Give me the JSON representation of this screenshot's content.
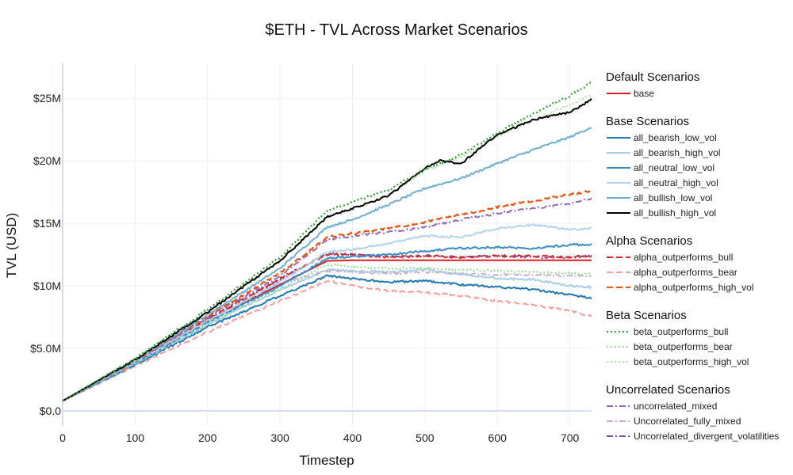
{
  "chart_data": {
    "type": "line",
    "title": "$ETH - TVL Across Market Scenarios",
    "xlabel": "Timestep",
    "ylabel": "TVL (USD)",
    "xlim": [
      0,
      730
    ],
    "ylim": [
      -1200000,
      27800000
    ],
    "x_ticks": [
      0,
      100,
      200,
      300,
      400,
      500,
      600,
      700
    ],
    "x_tick_labels": [
      "0",
      "100",
      "200",
      "300",
      "400",
      "500",
      "600",
      "700"
    ],
    "y_ticks": [
      0,
      5000000,
      10000000,
      15000000,
      20000000,
      25000000
    ],
    "y_tick_labels": [
      "$0.0",
      "$5.0M",
      "$10M",
      "$15M",
      "$20M",
      "$25M"
    ],
    "grid": true,
    "legend_position": "right",
    "legend_groups": [
      {
        "title": "Default Scenarios",
        "series": [
          "base"
        ]
      },
      {
        "title": "Base Scenarios",
        "series": [
          "all_bearish_low_vol",
          "all_bearish_high_vol",
          "all_neutral_low_vol",
          "all_neutral_high_vol",
          "all_bullish_low_vol",
          "all_bullish_high_vol"
        ]
      },
      {
        "title": "Alpha Scenarios",
        "series": [
          "alpha_outperforms_bull",
          "alpha_outperforms_bear",
          "alpha_outperforms_high_vol"
        ]
      },
      {
        "title": "Beta Scenarios",
        "series": [
          "beta_outperforms_bull",
          "beta_outperforms_bear",
          "beta_outperforms_high_vol"
        ]
      },
      {
        "title": "Uncorrelated Scenarios",
        "series": [
          "uncorrelated_mixed",
          "Uncorrelated_fully_mixed",
          "Uncorrelated_divergent_volatilities"
        ]
      }
    ],
    "series": [
      {
        "name": "base",
        "color": "#e31a1c",
        "dash": "solid",
        "width": 2,
        "x": [
          0,
          100,
          200,
          300,
          365,
          400,
          500,
          600,
          730
        ],
        "y": [
          800000,
          3900000,
          7200000,
          10100000,
          12000000,
          12050000,
          12050000,
          12050000,
          12050000
        ]
      },
      {
        "name": "all_bearish_low_vol",
        "color": "#1f78b4",
        "dash": "solid",
        "width": 2,
        "x": [
          0,
          100,
          200,
          300,
          365,
          400,
          450,
          500,
          550,
          600,
          650,
          700,
          730
        ],
        "y": [
          800000,
          3700000,
          6700000,
          9200000,
          10800000,
          10600000,
          10300000,
          10400000,
          10100000,
          9900000,
          9700000,
          9300000,
          9000000
        ]
      },
      {
        "name": "all_bearish_high_vol",
        "color": "#a6cee3",
        "dash": "solid",
        "width": 2,
        "x": [
          0,
          100,
          200,
          300,
          365,
          400,
          450,
          500,
          550,
          600,
          650,
          700,
          730
        ],
        "y": [
          800000,
          3800000,
          6900000,
          9700000,
          11300000,
          11200000,
          11100000,
          11300000,
          10900000,
          10600000,
          10500000,
          10000000,
          9900000
        ]
      },
      {
        "name": "all_neutral_low_vol",
        "color": "#3a8cc6",
        "dash": "solid",
        "width": 2,
        "x": [
          0,
          100,
          200,
          300,
          365,
          400,
          450,
          500,
          550,
          600,
          650,
          700,
          730
        ],
        "y": [
          800000,
          3850000,
          7100000,
          10000000,
          12200000,
          12350000,
          12500000,
          12800000,
          13000000,
          13100000,
          13000000,
          13300000,
          13300000
        ]
      },
      {
        "name": "all_neutral_high_vol",
        "color": "#b2d4ea",
        "dash": "solid",
        "width": 2,
        "x": [
          0,
          100,
          200,
          300,
          365,
          400,
          450,
          500,
          550,
          600,
          650,
          700,
          730
        ],
        "y": [
          800000,
          3900000,
          7200000,
          10300000,
          12700000,
          12900000,
          13400000,
          14000000,
          13900000,
          14600000,
          14900000,
          14500000,
          14600000
        ]
      },
      {
        "name": "all_bullish_low_vol",
        "color": "#6baed6",
        "dash": "solid",
        "width": 2,
        "x": [
          0,
          100,
          200,
          300,
          365,
          400,
          450,
          500,
          550,
          600,
          650,
          700,
          730
        ],
        "y": [
          800000,
          4000000,
          7700000,
          11400000,
          14700000,
          15300000,
          16500000,
          17800000,
          18600000,
          19800000,
          20900000,
          21900000,
          22700000
        ]
      },
      {
        "name": "all_bullish_high_vol",
        "color": "#000000",
        "dash": "solid",
        "width": 2,
        "x": [
          0,
          100,
          200,
          300,
          365,
          400,
          450,
          500,
          520,
          550,
          600,
          650,
          700,
          730
        ],
        "y": [
          800000,
          4100000,
          7900000,
          12000000,
          15500000,
          16200000,
          17200000,
          19400000,
          20000000,
          19800000,
          22100000,
          23300000,
          23900000,
          24900000
        ]
      },
      {
        "name": "alpha_outperforms_bull",
        "color": "#d62728",
        "dash": "8,4",
        "width": 2,
        "x": [
          0,
          100,
          200,
          300,
          365,
          400,
          450,
          500,
          550,
          600,
          650,
          700,
          730
        ],
        "y": [
          800000,
          3900000,
          7300000,
          10600000,
          12500000,
          12500000,
          12300000,
          12400000,
          12300000,
          12400000,
          12400000,
          12300000,
          12400000
        ]
      },
      {
        "name": "alpha_outperforms_bear",
        "color": "#fb9a99",
        "dash": "8,4",
        "width": 2,
        "x": [
          0,
          100,
          200,
          300,
          365,
          400,
          450,
          500,
          550,
          600,
          650,
          700,
          730
        ],
        "y": [
          800000,
          3600000,
          6300000,
          8800000,
          10400000,
          10000000,
          9600000,
          9500000,
          9200000,
          8800000,
          8500000,
          8000000,
          7600000
        ]
      },
      {
        "name": "alpha_outperforms_high_vol",
        "color": "#e6550d",
        "dash": "8,4",
        "width": 2.2,
        "x": [
          0,
          100,
          200,
          300,
          365,
          400,
          450,
          500,
          550,
          600,
          650,
          700,
          730
        ],
        "y": [
          800000,
          4000000,
          7600000,
          11000000,
          13900000,
          14200000,
          14600000,
          15100000,
          15700000,
          16300000,
          16800000,
          17300000,
          17600000
        ]
      },
      {
        "name": "beta_outperforms_bull",
        "color": "#2ca02c",
        "dash": "2,3",
        "width": 2.2,
        "x": [
          0,
          100,
          200,
          300,
          365,
          400,
          450,
          500,
          550,
          600,
          650,
          700,
          730
        ],
        "y": [
          800000,
          4200000,
          8100000,
          12300000,
          16000000,
          16700000,
          17700000,
          19300000,
          20500000,
          22200000,
          23800000,
          25200000,
          26300000
        ]
      },
      {
        "name": "beta_outperforms_bear",
        "color": "#98df8a",
        "dash": "2,3",
        "width": 2.2,
        "x": [
          0,
          100,
          200,
          300,
          365,
          400,
          450,
          500,
          550,
          600,
          650,
          700,
          730
        ],
        "y": [
          800000,
          3800000,
          7000000,
          9800000,
          11700000,
          11500000,
          11400000,
          11400000,
          11300000,
          11200000,
          11100000,
          11000000,
          10900000
        ]
      },
      {
        "name": "beta_outperforms_high_vol",
        "color": "#b5e3a8",
        "dash": "2,3",
        "width": 2.2,
        "x": [
          0,
          100,
          200,
          300,
          365,
          400,
          450,
          500,
          550,
          600,
          650,
          700,
          730
        ],
        "y": [
          800000,
          4100000,
          7900000,
          12000000,
          15500000,
          16100000,
          17200000,
          19200000,
          20300000,
          21900000,
          23300000,
          24500000,
          25300000
        ]
      },
      {
        "name": "uncorrelated_mixed",
        "color": "#9467bd",
        "dash": "8,3,2,3",
        "width": 2,
        "x": [
          0,
          100,
          200,
          300,
          365,
          400,
          450,
          500,
          550,
          600,
          650,
          700,
          730
        ],
        "y": [
          800000,
          4000000,
          7500000,
          10800000,
          13700000,
          14000000,
          14300000,
          14700000,
          15300000,
          15800000,
          16200000,
          16600000,
          17000000
        ]
      },
      {
        "name": "Uncorrelated_fully_mixed",
        "color": "#c5b0d5",
        "dash": "8,3,2,3",
        "width": 2,
        "x": [
          0,
          100,
          200,
          300,
          365,
          400,
          450,
          500,
          550,
          600,
          650,
          700,
          730
        ],
        "y": [
          800000,
          3900000,
          7300000,
          10200000,
          11200000,
          11100000,
          11000000,
          11100000,
          11000000,
          10900000,
          10900000,
          10800000,
          10800000
        ]
      },
      {
        "name": "Uncorrelated_divergent_volatilities",
        "color": "#7b4f9d",
        "dash": "8,3,2,3",
        "width": 2,
        "x": [
          0,
          100,
          200,
          300,
          365,
          400,
          450,
          500,
          550,
          600,
          650,
          700,
          730
        ],
        "y": [
          800000,
          3950000,
          7400000,
          10500000,
          12600000,
          12500000,
          12300000,
          12400000,
          12300000,
          12400000,
          12300000,
          12300000,
          12400000
        ]
      }
    ]
  }
}
